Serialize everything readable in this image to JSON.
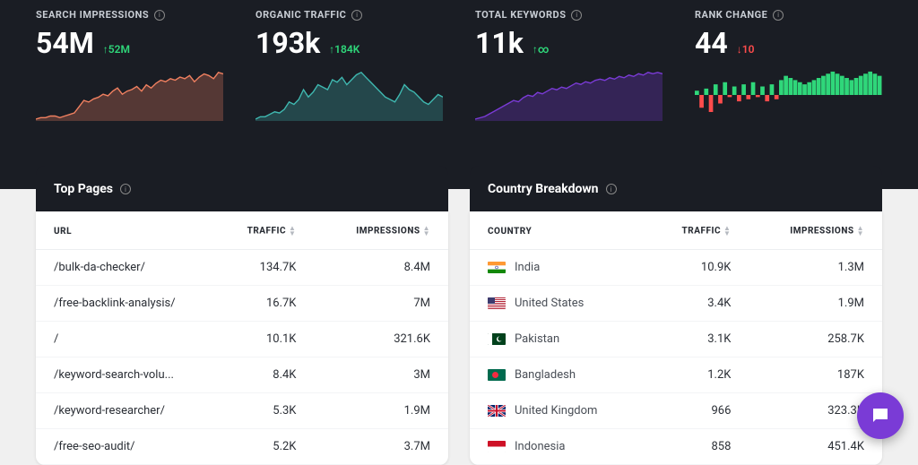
{
  "metrics": [
    {
      "label": "SEARCH IMPRESSIONS",
      "value": "54M",
      "change": "52M",
      "direction": "up",
      "spark_color": "#f08060",
      "spark_points": [
        12,
        13,
        13,
        14,
        14,
        13,
        14,
        15,
        16,
        20,
        24,
        23,
        25,
        26,
        28,
        27,
        30,
        32,
        28,
        30,
        31,
        33,
        30,
        34,
        32,
        35,
        37,
        36,
        38,
        37,
        39,
        38,
        40,
        36,
        39,
        41,
        40,
        38,
        42,
        41
      ],
      "bicolor": false
    },
    {
      "label": "ORGANIC TRAFFIC",
      "value": "193k",
      "change": "184K",
      "direction": "up",
      "spark_color": "#3fb8b0",
      "spark_points": [
        6,
        8,
        8,
        10,
        12,
        11,
        14,
        20,
        18,
        22,
        30,
        24,
        28,
        34,
        32,
        30,
        38,
        36,
        40,
        34,
        38,
        42,
        44,
        40,
        36,
        32,
        28,
        24,
        22,
        20,
        26,
        34,
        30,
        28,
        24,
        20,
        18,
        22,
        26,
        24
      ],
      "bicolor": false
    },
    {
      "label": "TOTAL KEYWORDS",
      "value": "11k",
      "change": "∞",
      "direction": "up",
      "spark_color": "#7a3bd6",
      "spark_points": [
        10,
        11,
        12,
        14,
        16,
        18,
        20,
        22,
        24,
        23,
        26,
        28,
        27,
        30,
        29,
        31,
        33,
        32,
        34,
        33,
        35,
        37,
        36,
        38,
        37,
        39,
        40,
        39,
        41,
        40,
        42,
        41,
        43,
        42,
        44,
        43,
        45,
        44,
        45,
        44
      ],
      "bicolor": false
    },
    {
      "label": "RANK CHANGE",
      "value": "44",
      "change": "10",
      "direction": "down",
      "spark_color": "#2fd77a",
      "spark_points": [
        4,
        -12,
        6,
        -16,
        10,
        -8,
        12,
        -2,
        8,
        -6,
        10,
        -4,
        12,
        -2,
        8,
        -6,
        10,
        -4,
        14,
        18,
        16,
        14,
        12,
        10,
        12,
        14,
        16,
        18,
        20,
        22,
        20,
        18,
        16,
        14,
        16,
        18,
        20,
        22,
        20,
        18
      ],
      "bicolor": true,
      "neg_color": "#ff4c4c"
    }
  ],
  "topPages": {
    "title": "Top Pages",
    "columns": {
      "url": "URL",
      "traffic": "TRAFFIC",
      "impressions": "IMPRESSIONS"
    },
    "rows": [
      {
        "url": "/bulk-da-checker/",
        "traffic": "134.7K",
        "impressions": "8.4M"
      },
      {
        "url": "/free-backlink-analysis/",
        "traffic": "16.7K",
        "impressions": "7M"
      },
      {
        "url": "/",
        "traffic": "10.1K",
        "impressions": "321.6K"
      },
      {
        "url": "/keyword-search-volu...",
        "traffic": "8.4K",
        "impressions": "3M"
      },
      {
        "url": "/keyword-researcher/",
        "traffic": "5.3K",
        "impressions": "1.9M"
      },
      {
        "url": "/free-seo-audit/",
        "traffic": "5.2K",
        "impressions": "3.7M"
      }
    ]
  },
  "countryBreakdown": {
    "title": "Country Breakdown",
    "columns": {
      "country": "COUNTRY",
      "traffic": "TRAFFIC",
      "impressions": "IMPRESSIONS"
    },
    "rows": [
      {
        "country": "India",
        "flag": "in",
        "traffic": "10.9K",
        "impressions": "1.3M"
      },
      {
        "country": "United States",
        "flag": "us",
        "traffic": "3.4K",
        "impressions": "1.9M"
      },
      {
        "country": "Pakistan",
        "flag": "pk",
        "traffic": "3.1K",
        "impressions": "258.7K"
      },
      {
        "country": "Bangladesh",
        "flag": "bd",
        "traffic": "1.2K",
        "impressions": "187K"
      },
      {
        "country": "United Kingdom",
        "flag": "gb",
        "traffic": "966",
        "impressions": "323.3K"
      },
      {
        "country": "Indonesia",
        "flag": "id",
        "traffic": "858",
        "impressions": "451.4K"
      }
    ]
  },
  "colors": {
    "dark_bg": "#1a1d24",
    "up": "#2fd77a",
    "down": "#ff4c4c",
    "fab": "#7a3bd6"
  }
}
